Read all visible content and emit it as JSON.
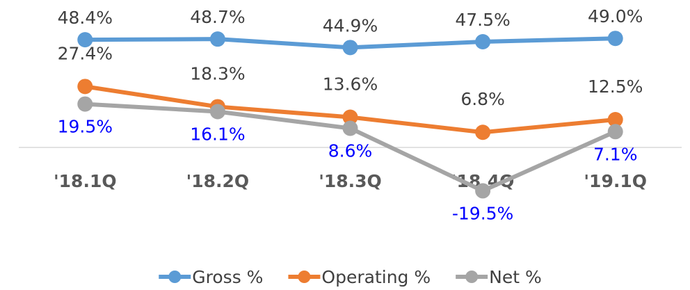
{
  "chart_data": {
    "type": "line",
    "categories": [
      "'18.1Q",
      "'18.2Q",
      "'18.3Q",
      "'18.4Q",
      "'19.1Q"
    ],
    "ylim": [
      -40,
      60
    ],
    "legend": "bottom",
    "series": [
      {
        "name": "Gross %",
        "color": "#5b9bd5",
        "label_color": "#404040",
        "label_position": "above",
        "values": [
          48.4,
          48.7,
          44.9,
          47.5,
          49.0
        ],
        "value_labels": [
          "48.4%",
          "48.7%",
          "44.9%",
          "47.5%",
          "49.0%"
        ]
      },
      {
        "name": "Operating %",
        "color": "#ed7d31",
        "label_color": "#404040",
        "label_position": "above",
        "values": [
          27.4,
          18.3,
          13.6,
          6.8,
          12.5
        ],
        "value_labels": [
          "27.4%",
          "18.3%",
          "13.6%",
          "6.8%",
          "12.5%"
        ]
      },
      {
        "name": "Net %",
        "color": "#a5a5a5",
        "label_color": "#0000ff",
        "label_position": "below",
        "values": [
          19.5,
          16.1,
          8.6,
          -19.5,
          7.1
        ],
        "value_labels": [
          "19.5%",
          "16.1%",
          "8.6%",
          "-19.5%",
          "7.1%"
        ]
      }
    ]
  }
}
